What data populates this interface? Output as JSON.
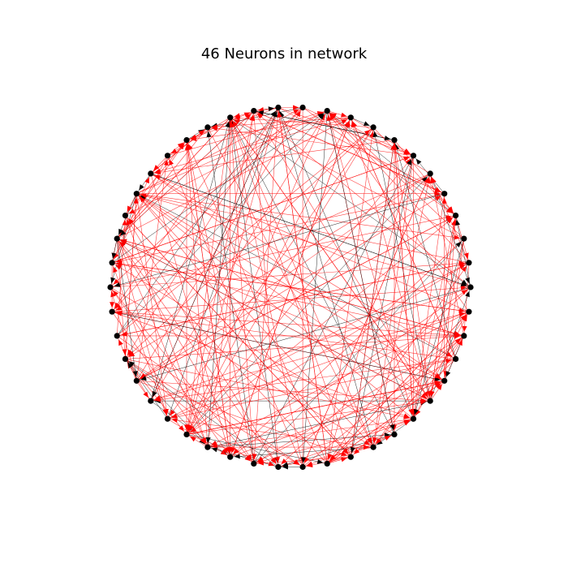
{
  "title": "46 Neurons in network",
  "network": {
    "node_count": 46,
    "node_color": "#000000",
    "excitatory_color": "#ff0000",
    "inhibitory_color": "#000000",
    "layout": "circular",
    "directed": true
  }
}
